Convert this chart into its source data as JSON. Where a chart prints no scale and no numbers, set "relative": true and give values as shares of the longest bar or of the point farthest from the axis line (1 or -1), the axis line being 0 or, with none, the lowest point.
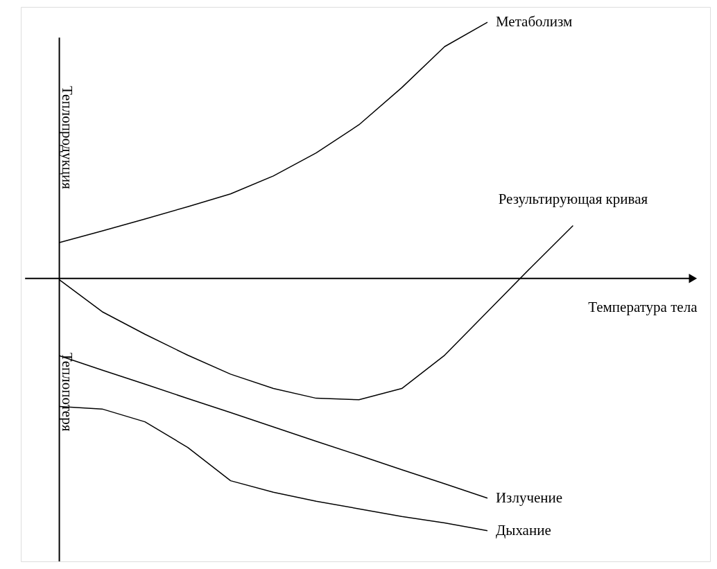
{
  "chart_data": {
    "type": "line",
    "relative": true,
    "xlabel": "Температура тела",
    "ylabel": "Теплопродукция",
    "annotations": [
      "Теплопотеря"
    ],
    "marker": "none",
    "line_style": "solid",
    "categories": [
      null,
      null,
      null,
      null,
      null,
      null,
      null,
      null,
      null,
      null,
      null,
      null,
      null
    ],
    "series": [
      {
        "name": "Метаболизм",
        "color": "#000000",
        "values": [
          0.14,
          0.185,
          0.232,
          0.28,
          0.33,
          0.4,
          0.49,
          0.6,
          0.745,
          0.905,
          1.0,
          null,
          null
        ]
      },
      {
        "name": "Результирующая кривая",
        "color": "#000000",
        "values": [
          -0.005,
          -0.13,
          -0.218,
          -0.3,
          -0.374,
          -0.43,
          -0.468,
          -0.474,
          -0.43,
          -0.3,
          -0.13,
          0.04,
          0.206
        ]
      },
      {
        "name": "Излучение",
        "color": "#000000",
        "values": [
          -0.302,
          -0.358,
          -0.413,
          -0.469,
          -0.524,
          -0.58,
          -0.636,
          -0.691,
          -0.747,
          -0.802,
          -0.858,
          null,
          null
        ]
      },
      {
        "name": "Дыхание",
        "color": "#000000",
        "values": [
          -0.5,
          -0.51,
          -0.56,
          -0.66,
          -0.79,
          -0.835,
          -0.87,
          -0.9,
          -0.93,
          -0.955,
          -0.985,
          null,
          null
        ]
      }
    ]
  }
}
